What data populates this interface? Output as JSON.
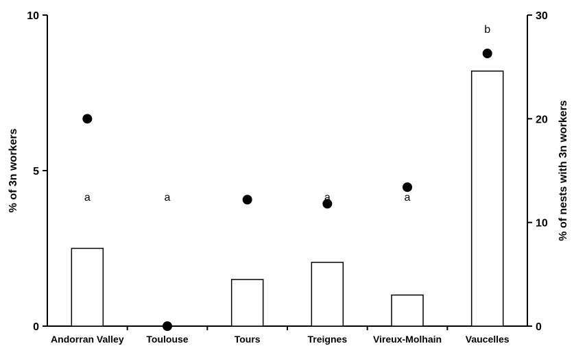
{
  "chart_data": {
    "type": "bar",
    "categories": [
      "Andorran Valley",
      "Toulouse",
      "Tours",
      "Treignes",
      "Vireux-Molhain",
      "Vaucelles"
    ],
    "series": [
      {
        "values": [
          2.5,
          0,
          1.5,
          2.05,
          1.0,
          8.2
        ],
        "axis": "left"
      },
      {
        "values": [
          20.0,
          0,
          12.2,
          11.8,
          13.4,
          26.3
        ],
        "axis": "right",
        "marker": "filled-circle"
      }
    ],
    "significance_letters": [
      "a",
      "a",
      "a",
      "a",
      "a",
      "b"
    ],
    "ylabel": "% of 3n workers",
    "ylabel_right": "% of nests with 3n workers",
    "ylim": [
      0,
      10
    ],
    "ylim_right": [
      0,
      30
    ],
    "yticks": [
      0,
      5,
      10
    ],
    "yticks_right": [
      0,
      10,
      20,
      30
    ],
    "grid": false,
    "legend": "none"
  }
}
